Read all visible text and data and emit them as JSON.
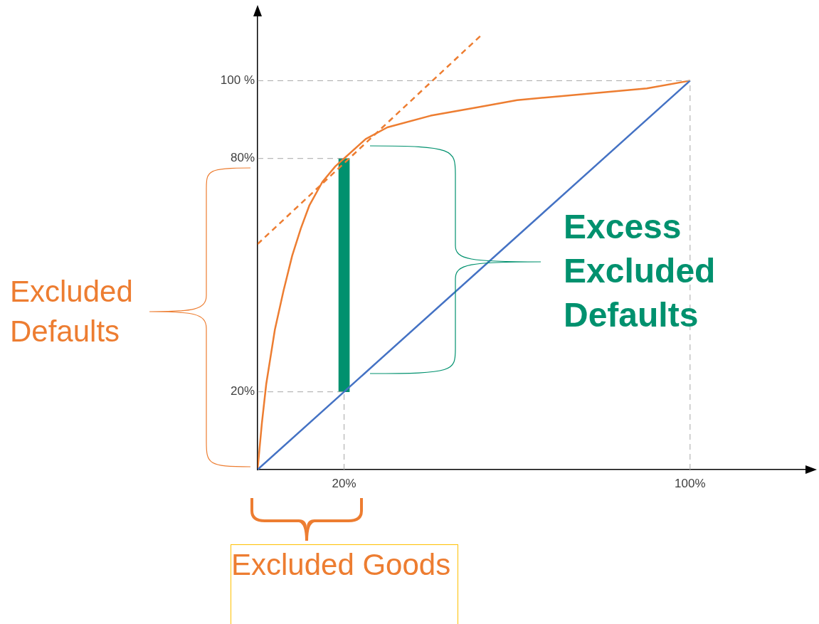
{
  "chart_data": {
    "type": "line",
    "xlim": [
      0,
      128
    ],
    "ylim": [
      0,
      118
    ],
    "xticks": [
      {
        "value": 20,
        "label": "20%"
      },
      {
        "value": 100,
        "label": "100%"
      }
    ],
    "yticks": [
      {
        "value": 20,
        "label": "20%"
      },
      {
        "value": 80,
        "label": "80%"
      },
      {
        "value": 100,
        "label": "100 %"
      }
    ],
    "grid": false,
    "legend": false,
    "marker": "none",
    "series": [
      {
        "color": "#a6a6a6",
        "line_style": "dashed",
        "x": [
          0,
          100
        ],
        "values": [
          100,
          100
        ]
      },
      {
        "color": "#a6a6a6",
        "line_style": "dashed",
        "x": [
          100,
          100
        ],
        "values": [
          0,
          100
        ]
      },
      {
        "color": "#a6a6a6",
        "line_style": "dashed",
        "x": [
          0,
          20
        ],
        "values": [
          80,
          80
        ]
      },
      {
        "color": "#a6a6a6",
        "line_style": "dashed",
        "x": [
          0,
          20
        ],
        "values": [
          20,
          20
        ]
      },
      {
        "color": "#a6a6a6",
        "line_style": "dashed",
        "x": [
          20,
          20
        ],
        "values": [
          0,
          20
        ]
      },
      {
        "color": "#4472c4",
        "line_style": "solid",
        "x": [
          0,
          100
        ],
        "values": [
          0,
          100
        ]
      },
      {
        "color": "#ed7d31",
        "line_style": "solid",
        "x": [
          0,
          1,
          2,
          4,
          6,
          8,
          10,
          12,
          15,
          18,
          20,
          25,
          30,
          40,
          50,
          60,
          70,
          80,
          90,
          100
        ],
        "values": [
          0,
          12,
          22,
          36,
          46,
          55,
          62,
          68,
          74,
          78,
          80,
          85,
          88,
          91,
          93,
          95,
          96,
          97,
          98,
          100
        ]
      },
      {
        "color": "#ed7d31",
        "line_style": "dashed",
        "x": [
          0,
          52
        ],
        "values": [
          58,
          112
        ]
      },
      {
        "type": "bar",
        "color": "#00916e",
        "x": [
          20
        ],
        "base": [
          20
        ],
        "values": [
          60
        ]
      }
    ],
    "annotations": [
      "Excluded Defaults",
      "Excess Excluded Defaults",
      "Excluded Goods"
    ]
  }
}
